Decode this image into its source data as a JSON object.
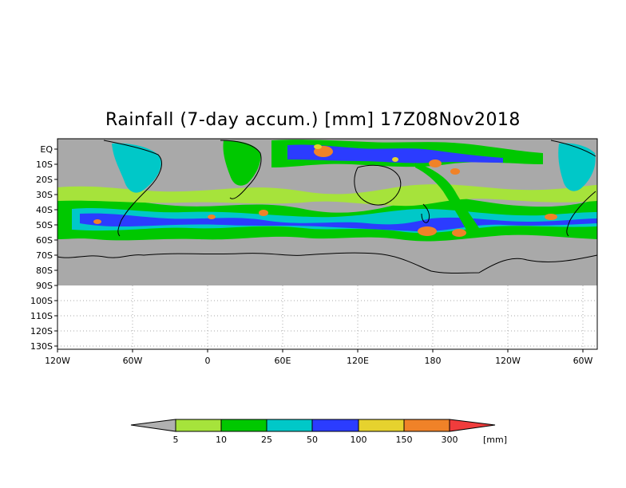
{
  "title": "Rainfall (7-day accum.) [mm] 17Z08Nov2018",
  "map": {
    "y_labels": [
      "EQ",
      "10S",
      "20S",
      "30S",
      "40S",
      "50S",
      "60S",
      "70S",
      "80S",
      "90S",
      "100S",
      "110S",
      "120S",
      "130S"
    ],
    "x_labels": [
      "120W",
      "60W",
      "0",
      "60E",
      "120E",
      "180",
      "120W",
      "60W"
    ],
    "grid": "dotted below 90S",
    "ocean_color": "#a9a9a9",
    "coast_color": "#000000"
  },
  "legend": {
    "unit": "[mm]",
    "thresholds": [
      "5",
      "10",
      "25",
      "50",
      "100",
      "150",
      "300"
    ],
    "colors": [
      "#b0b0b0",
      "#a6e33b",
      "#00c800",
      "#00c8c8",
      "#2b3cff",
      "#e6d22e",
      "#f08228",
      "#f03c3c"
    ]
  }
}
